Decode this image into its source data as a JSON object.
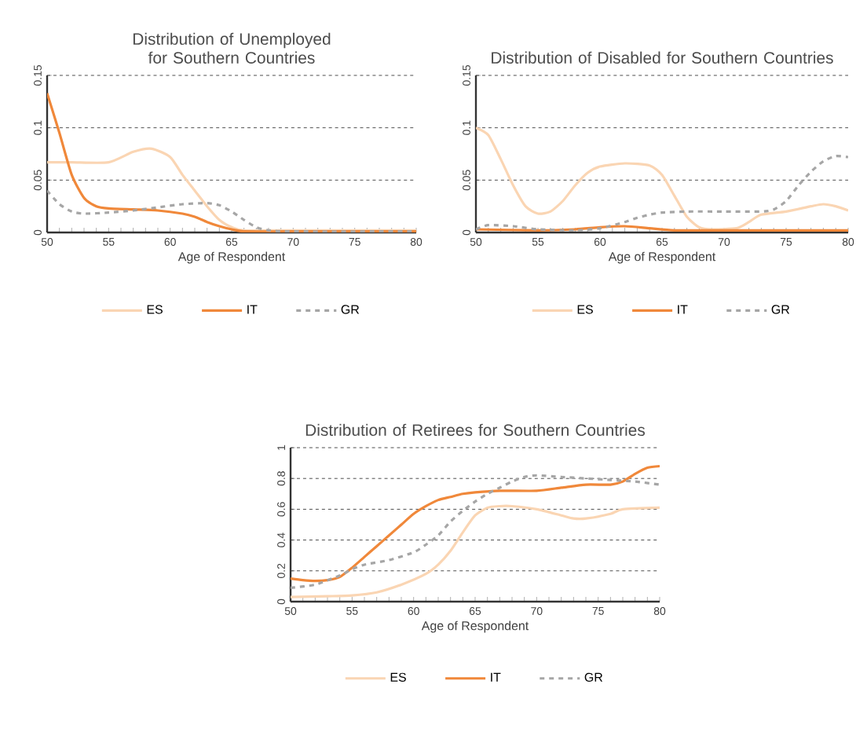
{
  "chart_data": [
    {
      "type": "line",
      "title": "Distribution of Unemployed for Southern Countries",
      "xlabel": "Age of Respondent",
      "xlim": [
        50,
        80
      ],
      "xticks": [
        50,
        55,
        60,
        65,
        70,
        75,
        80
      ],
      "ylim": [
        0,
        0.15
      ],
      "yticks": [
        0,
        0.05,
        0.1,
        0.15
      ],
      "grid": "y",
      "legend": "bottom",
      "series": [
        {
          "name": "ES",
          "color": "#fad5b3",
          "line_style": "solid",
          "x": [
            50,
            52,
            55,
            57,
            58.5,
            60,
            61,
            62,
            63,
            64,
            65,
            66,
            70,
            80
          ],
          "values": [
            0.067,
            0.067,
            0.067,
            0.077,
            0.08,
            0.072,
            0.055,
            0.04,
            0.025,
            0.012,
            0.005,
            0.002,
            0.002,
            0.002
          ]
        },
        {
          "name": "IT",
          "color": "#f0883a",
          "line_style": "solid",
          "x": [
            50,
            51,
            52,
            53,
            54,
            55,
            57,
            59,
            61,
            62,
            63,
            64,
            65,
            66,
            70,
            80
          ],
          "values": [
            0.133,
            0.095,
            0.055,
            0.033,
            0.025,
            0.023,
            0.022,
            0.021,
            0.018,
            0.015,
            0.01,
            0.006,
            0.003,
            0.001,
            0.001,
            0.001
          ]
        },
        {
          "name": "GR",
          "color": "#a6a6a6",
          "line_style": "dashed",
          "x": [
            50,
            51,
            52,
            53,
            55,
            57,
            59,
            61,
            63,
            64,
            65,
            66,
            67,
            68,
            70,
            80
          ],
          "values": [
            0.04,
            0.027,
            0.02,
            0.018,
            0.019,
            0.021,
            0.024,
            0.027,
            0.028,
            0.026,
            0.02,
            0.012,
            0.005,
            0.002,
            0.001,
            0.001
          ]
        }
      ]
    },
    {
      "type": "line",
      "title": "Distribution of Disabled for Southern Countries",
      "xlabel": "Age of Respondent",
      "xlim": [
        50,
        80
      ],
      "xticks": [
        50,
        55,
        60,
        65,
        70,
        75,
        80
      ],
      "ylim": [
        0,
        0.15
      ],
      "yticks": [
        0,
        0.05,
        0.1,
        0.15
      ],
      "grid": "y",
      "legend": "bottom",
      "series": [
        {
          "name": "ES",
          "color": "#fad5b3",
          "line_style": "solid",
          "x": [
            50,
            51,
            52,
            53,
            54,
            55,
            56,
            57,
            58,
            59,
            60,
            62,
            64,
            65,
            66,
            67,
            68,
            69,
            71,
            72,
            73,
            75,
            77,
            78,
            79,
            80
          ],
          "values": [
            0.1,
            0.093,
            0.07,
            0.045,
            0.025,
            0.018,
            0.02,
            0.03,
            0.045,
            0.057,
            0.063,
            0.066,
            0.064,
            0.055,
            0.035,
            0.015,
            0.005,
            0.003,
            0.004,
            0.01,
            0.017,
            0.02,
            0.025,
            0.027,
            0.025,
            0.021
          ]
        },
        {
          "name": "IT",
          "color": "#f0883a",
          "line_style": "solid",
          "x": [
            50,
            55,
            58,
            60,
            62,
            64,
            66,
            70,
            80
          ],
          "values": [
            0.003,
            0.002,
            0.003,
            0.005,
            0.006,
            0.004,
            0.002,
            0.002,
            0.002
          ]
        },
        {
          "name": "GR",
          "color": "#a6a6a6",
          "line_style": "dashed",
          "x": [
            50,
            51,
            53,
            55,
            58,
            60,
            62,
            63,
            64,
            65,
            67,
            70,
            73,
            74,
            75,
            76,
            77,
            78,
            79,
            80
          ],
          "values": [
            0.003,
            0.007,
            0.006,
            0.003,
            0.002,
            0.004,
            0.01,
            0.014,
            0.017,
            0.019,
            0.02,
            0.02,
            0.02,
            0.022,
            0.03,
            0.045,
            0.058,
            0.068,
            0.073,
            0.072
          ]
        }
      ]
    },
    {
      "type": "line",
      "title": "Distribution of Retirees for Southern Countries",
      "xlabel": "Age of Respondent",
      "xlim": [
        50,
        80
      ],
      "xticks": [
        50,
        55,
        60,
        65,
        70,
        75,
        80
      ],
      "ylim": [
        0,
        1
      ],
      "yticks": [
        0,
        0.2,
        0.4,
        0.6,
        0.8,
        1
      ],
      "grid": "y",
      "legend": "bottom",
      "series": [
        {
          "name": "ES",
          "color": "#fad5b3",
          "line_style": "solid",
          "x": [
            50,
            53,
            55,
            57,
            59,
            61,
            62,
            63,
            64,
            65,
            66,
            67,
            68,
            70,
            72,
            73,
            74,
            76,
            77,
            80
          ],
          "values": [
            0.03,
            0.035,
            0.04,
            0.06,
            0.11,
            0.18,
            0.24,
            0.33,
            0.45,
            0.56,
            0.61,
            0.62,
            0.62,
            0.6,
            0.56,
            0.54,
            0.54,
            0.57,
            0.6,
            0.61
          ]
        },
        {
          "name": "IT",
          "color": "#f0883a",
          "line_style": "solid",
          "x": [
            50,
            51,
            52,
            53,
            54,
            55,
            56,
            57,
            58,
            59,
            60,
            61,
            62,
            63,
            64,
            65,
            67,
            70,
            72,
            74,
            76,
            77,
            78,
            79,
            80
          ],
          "values": [
            0.15,
            0.14,
            0.135,
            0.14,
            0.16,
            0.22,
            0.29,
            0.36,
            0.43,
            0.5,
            0.57,
            0.62,
            0.66,
            0.68,
            0.7,
            0.71,
            0.72,
            0.72,
            0.74,
            0.76,
            0.76,
            0.78,
            0.83,
            0.87,
            0.88
          ]
        },
        {
          "name": "GR",
          "color": "#a6a6a6",
          "line_style": "dashed",
          "x": [
            50,
            52,
            54,
            55,
            56,
            58,
            60,
            61,
            62,
            63,
            64,
            65,
            66,
            67,
            68,
            69,
            70,
            72,
            74,
            76,
            78,
            80
          ],
          "values": [
            0.09,
            0.11,
            0.17,
            0.21,
            0.24,
            0.27,
            0.32,
            0.37,
            0.43,
            0.52,
            0.59,
            0.65,
            0.7,
            0.74,
            0.78,
            0.81,
            0.82,
            0.81,
            0.8,
            0.79,
            0.78,
            0.76
          ]
        }
      ]
    }
  ]
}
